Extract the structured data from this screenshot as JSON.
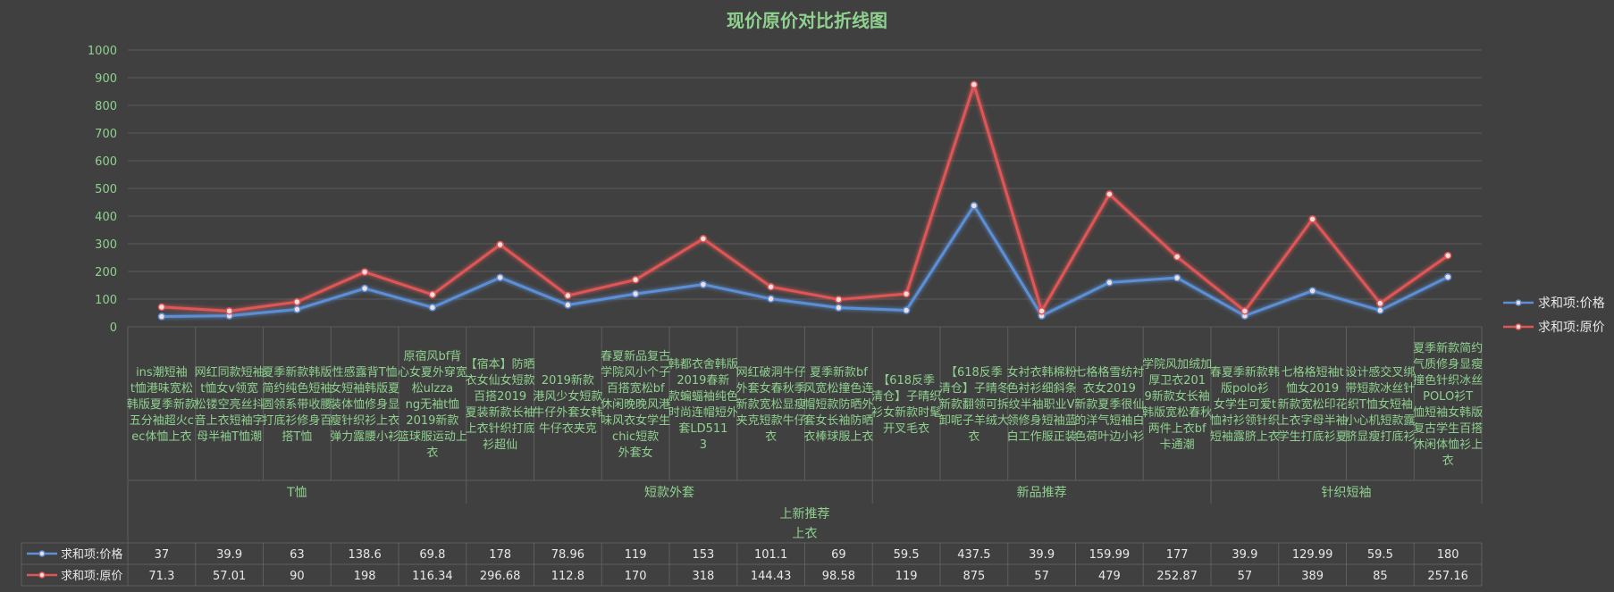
{
  "chart_data": {
    "type": "line",
    "title": "现价原价对比折线图",
    "ylim": [
      0,
      1000
    ],
    "yticks": [
      0,
      100,
      200,
      300,
      400,
      500,
      600,
      700,
      800,
      900,
      1000
    ],
    "grid": true,
    "legend_position": "right",
    "colors": {
      "price": "#5b8fd6",
      "original": "#e05656",
      "text": "#8fd18f"
    },
    "categories": [
      "ins潮短袖t恤港味宽松韩版夏季新款五分袖超火cec体恤上衣",
      "网红同款短袖t恤女v领宽松镂空亮丝抖音上衣短袖字母半袖T恤潮",
      "夏季新款韩版简约纯色短袖圆领系带收腰打底衫修身百搭T恤",
      "性感露背T恤女短袖韩版夏装体恤修身显瘦针织衫上衣弹力露腰小衫",
      "原宿风bf背心女夏外穿宽松ulzzang无袖t恤2019新款篮球服运动上衣",
      "【宿本】防晒衣女仙女短款百搭2019夏装新款长袖上衣针织打底衫超仙",
      "2019新款港风少女短款牛仔外套女韩牛仔衣夹克",
      "春夏新品复古学院风小个子百搭宽松bf休闲晚晚风港味风衣女学生chic短款外套女",
      "韩都衣舍韩版2019春新款蝙蝠袖纯色时尚连帽短外套LD5113",
      "网红破洞牛仔外套女春秋季新款宽松显瘦夹克短款牛仔衣",
      "夏季新款bf风宽松撞色连帽短款防晒外套女长袖防晒衣棒球服上衣",
      "【618反季清仓】子晴织衫女新款时髦开叉毛衣",
      "【618反季清仓】子晴冬新款翻领可拆卸呢子羊绒大衣",
      "女衬衣韩棉粉色衬衫细斜条纹半袖职业V领修身短袖蓝白工作服正装",
      "七格格雪纺衬衣女2019新款夏季很仙的洋气短袖白色荷叶边小衫",
      "学院风加绒加厚卫衣2019新款女长袖韩版宽松春秋两件上衣bf卡通潮",
      "春夏季新款韩版polo衫女学生可爱t恤衬衫领针织短袖露脐上衣",
      "七格格短袖t恤女2019新款宽松印花上衣字母半袖学生打底衫夏",
      "设计感交叉绑带短款冰丝针织T恤女短袖小心机短款露脐显瘦打底衫",
      "夏季新款简约气质修身显瘦撞色针织冰丝POLO衫T恤短袖女韩版复古学生百搭休闲体恤衫上衣"
    ],
    "groups_level1": [
      {
        "label": "T恤",
        "count": 5
      },
      {
        "label": "短款外套",
        "count": 6
      },
      {
        "label": "新品推荐",
        "count": 5
      },
      {
        "label": "针织短袖",
        "count": 4
      }
    ],
    "group_level2": "上新推荐",
    "group_level3": "上衣",
    "series": [
      {
        "name": "求和项:价格",
        "values": [
          37,
          39.9,
          63,
          138.6,
          69.8,
          178,
          78.96,
          119,
          153,
          101.1,
          69,
          59.5,
          437.5,
          39.9,
          159.99,
          177,
          39.9,
          129.99,
          59.5,
          180
        ]
      },
      {
        "name": "求和项:原价",
        "values": [
          71.3,
          57.01,
          90,
          198,
          116.34,
          296.68,
          112.8,
          170,
          318,
          144.43,
          98.58,
          119,
          875,
          57,
          479,
          252.87,
          57,
          389,
          85,
          257.16
        ]
      }
    ]
  }
}
